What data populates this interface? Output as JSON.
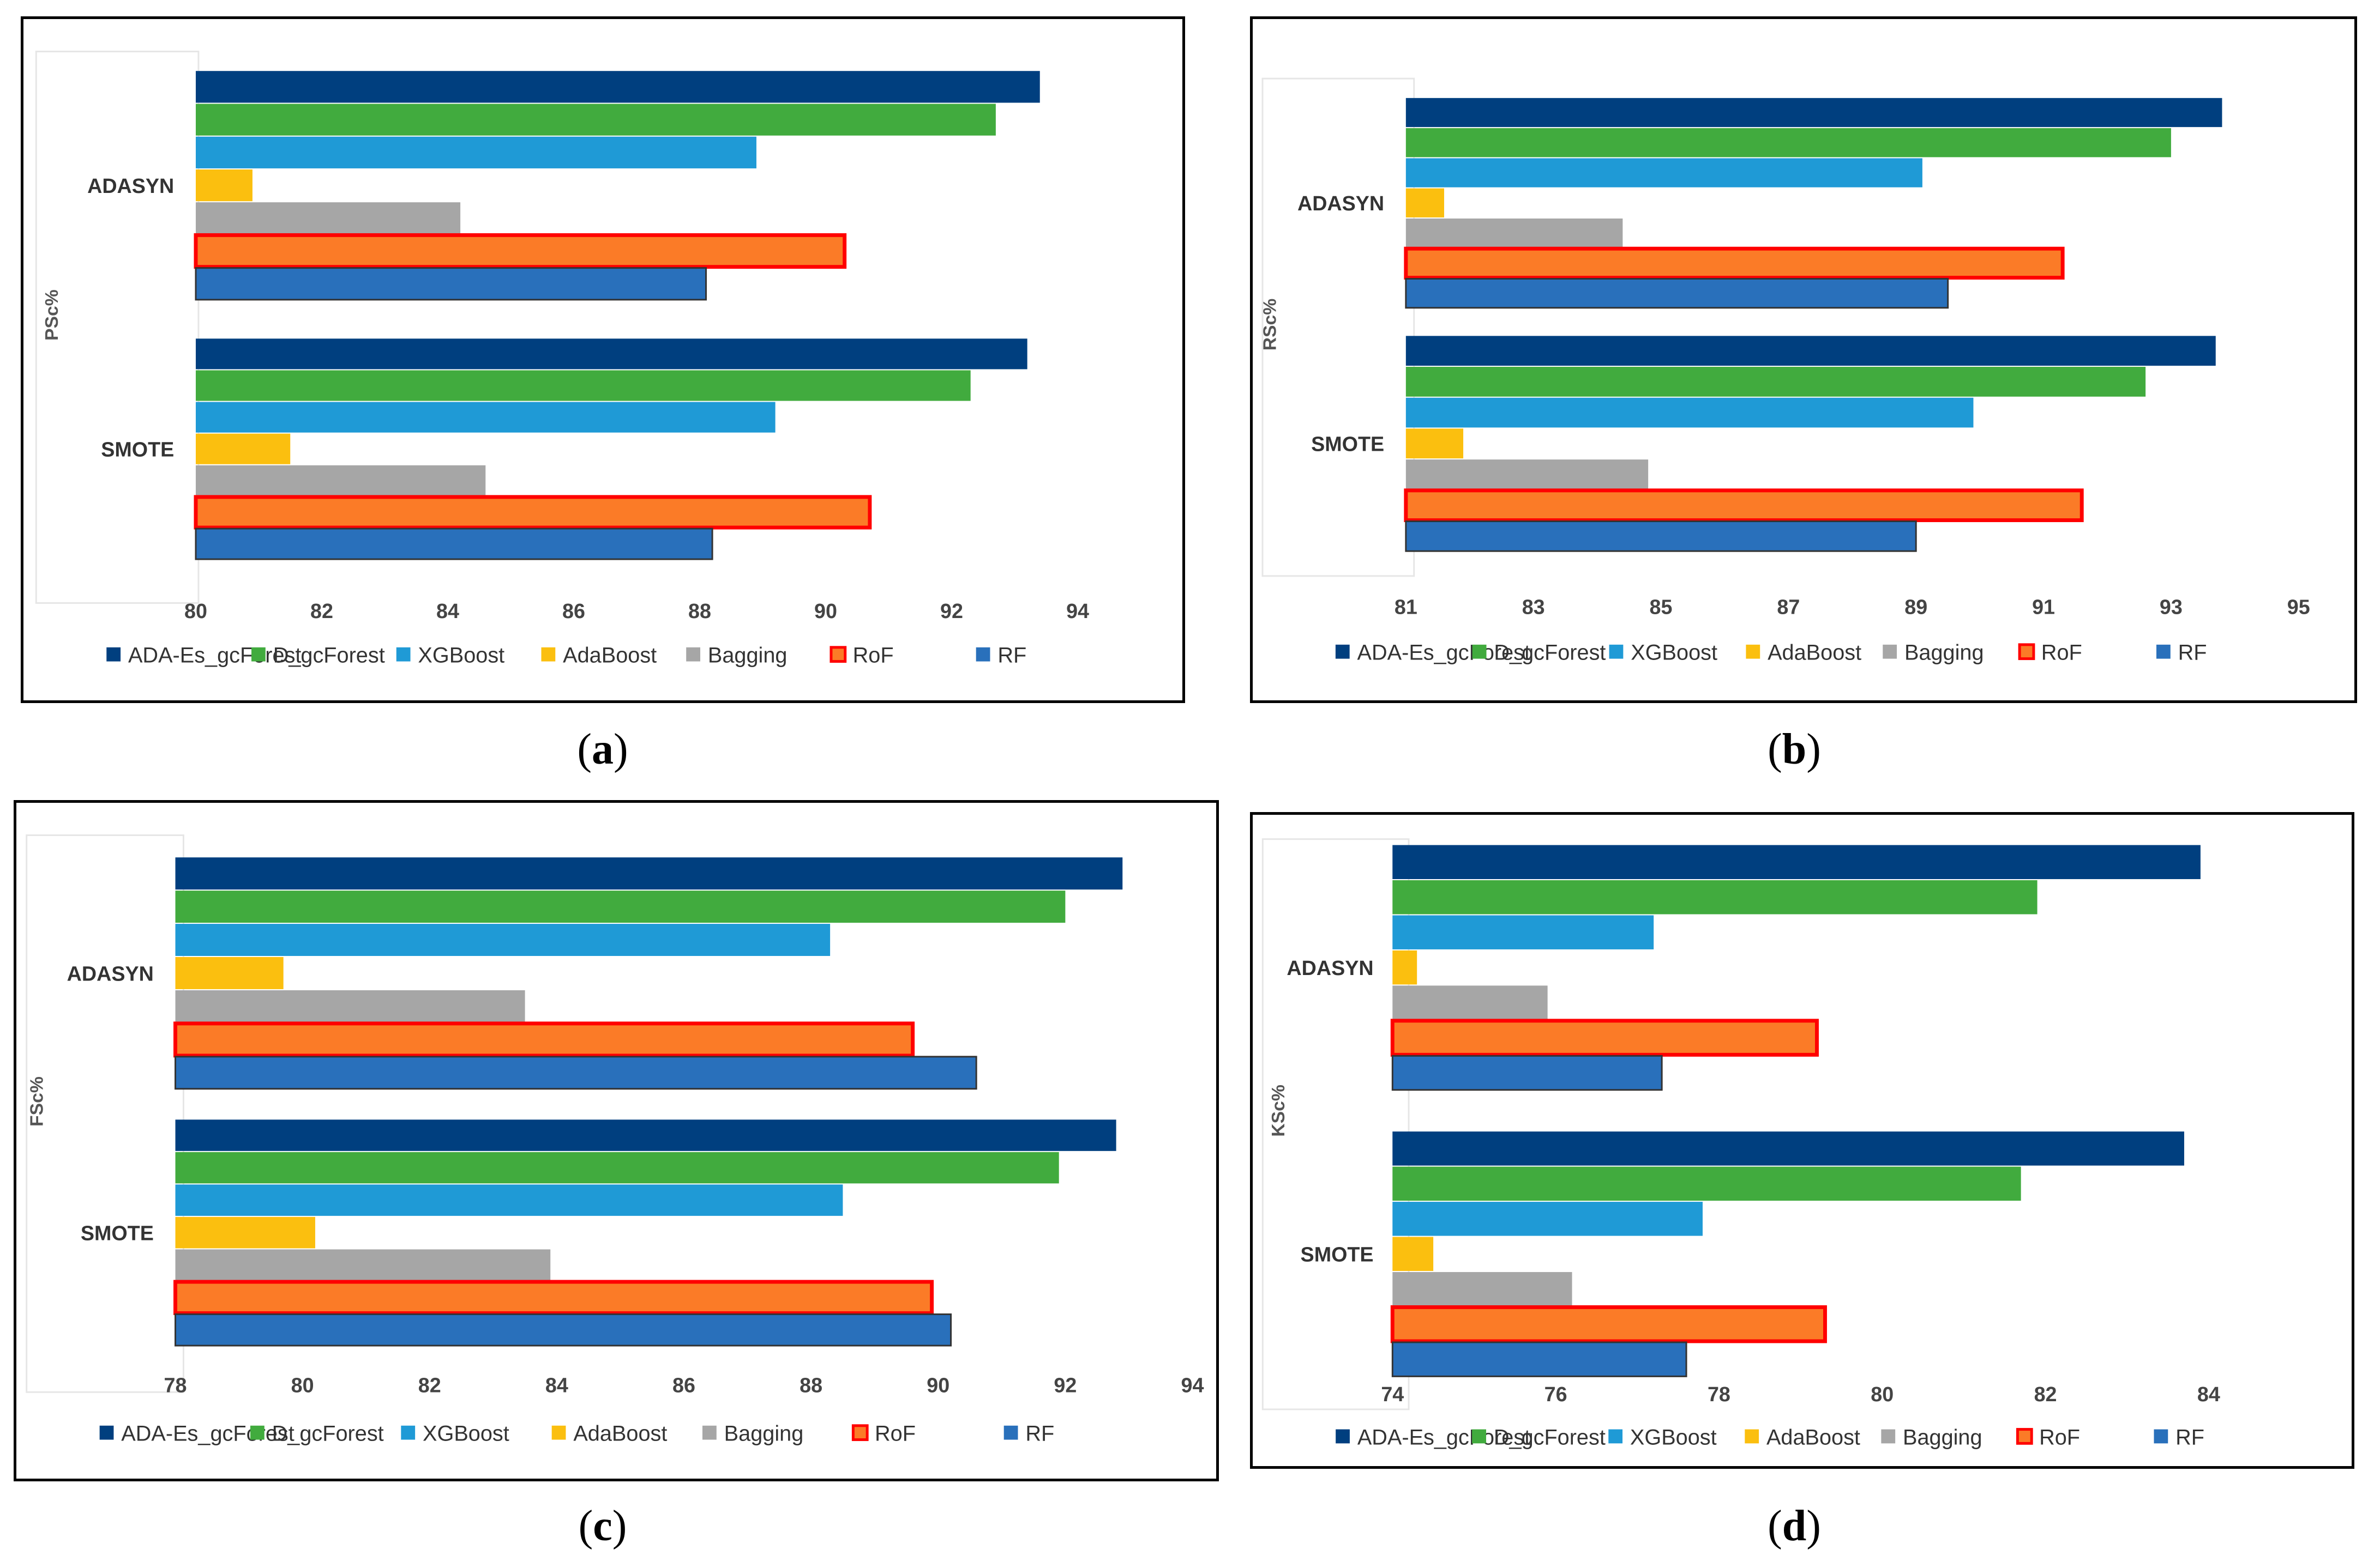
{
  "legend_series": [
    "ADA-Es_gcForest",
    "D_gcForest",
    "XGBoost",
    "AdaBoost",
    "Bagging",
    "RoF",
    "RF"
  ],
  "series_colors": [
    "#003f7f",
    "#41ab3e",
    "#1f9ad6",
    "#fbbf0f",
    "#a6a6a6",
    "#fb7b27",
    "#2970bb"
  ],
  "rof_border_color": "#ff0000",
  "chart_data": [
    {
      "id": "a",
      "type": "bar",
      "orientation": "horizontal",
      "caption": "a",
      "ylabel": "PSc%",
      "categories": [
        "ADASYN",
        "SMOTE"
      ],
      "xlim": [
        80,
        94
      ],
      "xticks": [
        80,
        82,
        84,
        86,
        88,
        90,
        92,
        94
      ],
      "series": [
        {
          "name": "ADA-Es_gcForest",
          "values": [
            93.4,
            93.2
          ]
        },
        {
          "name": "D_gcForest",
          "values": [
            92.7,
            92.3
          ]
        },
        {
          "name": "XGBoost",
          "values": [
            88.9,
            89.2
          ]
        },
        {
          "name": "AdaBoost",
          "values": [
            80.9,
            81.5
          ]
        },
        {
          "name": "Bagging",
          "values": [
            84.2,
            84.6
          ]
        },
        {
          "name": "RoF",
          "values": [
            90.3,
            90.7
          ]
        },
        {
          "name": "RF",
          "values": [
            88.1,
            88.2
          ]
        }
      ]
    },
    {
      "id": "b",
      "type": "bar",
      "orientation": "horizontal",
      "caption": "b",
      "ylabel": "RSc%",
      "categories": [
        "ADASYN",
        "SMOTE"
      ],
      "xlim": [
        81,
        95
      ],
      "xticks": [
        81,
        83,
        85,
        87,
        89,
        91,
        93,
        95
      ],
      "series": [
        {
          "name": "ADA-Es_gcForest",
          "values": [
            93.8,
            93.7
          ]
        },
        {
          "name": "D_gcForest",
          "values": [
            93.0,
            92.6
          ]
        },
        {
          "name": "XGBoost",
          "values": [
            89.1,
            89.9
          ]
        },
        {
          "name": "AdaBoost",
          "values": [
            81.6,
            81.9
          ]
        },
        {
          "name": "Bagging",
          "values": [
            84.4,
            84.8
          ]
        },
        {
          "name": "RoF",
          "values": [
            91.3,
            91.6
          ]
        },
        {
          "name": "RF",
          "values": [
            89.5,
            89.0
          ]
        }
      ]
    },
    {
      "id": "c",
      "type": "bar",
      "orientation": "horizontal",
      "caption": "c",
      "ylabel": "FSc%",
      "categories": [
        "ADASYN",
        "SMOTE"
      ],
      "xlim": [
        78,
        94
      ],
      "xticks": [
        78,
        80,
        82,
        84,
        86,
        88,
        90,
        92,
        94
      ],
      "series": [
        {
          "name": "ADA-Es_gcForest",
          "values": [
            92.9,
            92.8
          ]
        },
        {
          "name": "D_gcForest",
          "values": [
            92.0,
            91.9
          ]
        },
        {
          "name": "XGBoost",
          "values": [
            88.3,
            88.5
          ]
        },
        {
          "name": "AdaBoost",
          "values": [
            79.7,
            80.2
          ]
        },
        {
          "name": "Bagging",
          "values": [
            83.5,
            83.9
          ]
        },
        {
          "name": "RoF",
          "values": [
            89.6,
            89.9
          ]
        },
        {
          "name": "RF",
          "values": [
            90.6,
            90.2
          ]
        }
      ]
    },
    {
      "id": "d",
      "type": "bar",
      "orientation": "horizontal",
      "caption": "d",
      "ylabel": "KSc%",
      "categories": [
        "ADASYN",
        "SMOTE"
      ],
      "xlim": [
        74,
        85
      ],
      "xticks": [
        74,
        76,
        78,
        80,
        82,
        84
      ],
      "series": [
        {
          "name": "ADA-Es_gcForest",
          "values": [
            83.9,
            83.7
          ]
        },
        {
          "name": "D_gcForest",
          "values": [
            81.9,
            81.7
          ]
        },
        {
          "name": "XGBoost",
          "values": [
            77.2,
            77.8
          ]
        },
        {
          "name": "AdaBoost",
          "values": [
            74.3,
            74.5
          ]
        },
        {
          "name": "Bagging",
          "values": [
            75.9,
            76.2
          ]
        },
        {
          "name": "RoF",
          "values": [
            79.2,
            79.3
          ]
        },
        {
          "name": "RF",
          "values": [
            77.3,
            77.6
          ]
        }
      ]
    }
  ]
}
